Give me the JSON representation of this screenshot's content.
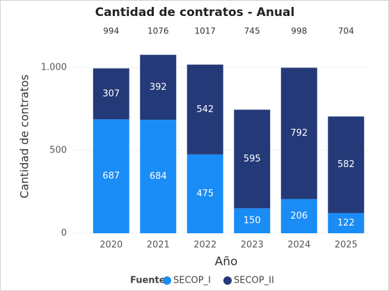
{
  "chart_data": {
    "type": "stacked-bar",
    "title": "Cantidad de contratos - Anual",
    "xlabel": "Año",
    "ylabel": "Cantidad de contratos",
    "categories": [
      "2020",
      "2021",
      "2022",
      "2023",
      "2024",
      "2025"
    ],
    "series": [
      {
        "name": "SECOP_I",
        "color": "#1a8cf5",
        "values": [
          687,
          684,
          475,
          150,
          206,
          122
        ]
      },
      {
        "name": "SECOP_II",
        "color": "#243a78",
        "values": [
          307,
          392,
          542,
          595,
          792,
          582
        ]
      }
    ],
    "totals": [
      994,
      1076,
      1017,
      745,
      998,
      704
    ],
    "ylim": [
      0,
      1100
    ],
    "yticks": [
      0,
      500,
      {
        "value": 1000,
        "label": "1.000"
      }
    ],
    "grid": true,
    "legend_title": "Fuente",
    "legend": "bottom"
  }
}
